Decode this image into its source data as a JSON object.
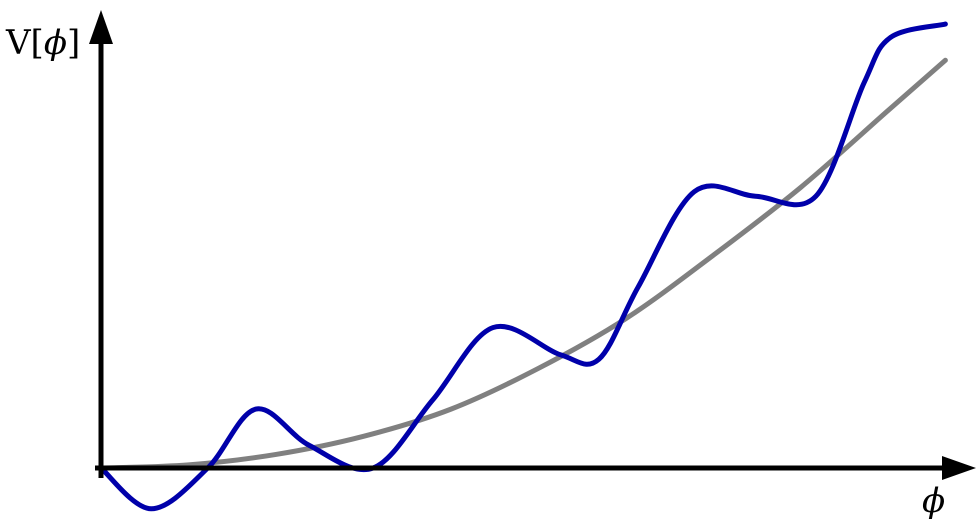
{
  "chart_data": {
    "type": "line",
    "xlabel": "ϕ",
    "ylabel": "V[ϕ]",
    "ylabel_parts": {
      "prefix": "V[",
      "symbol": "ϕ",
      "suffix": "]"
    },
    "xlim": [
      0,
      1
    ],
    "ylim": [
      -0.11,
      1.0
    ],
    "grid": false,
    "legend": "none",
    "x": [
      0.0,
      0.0575,
      0.122,
      0.177,
      0.238,
      0.311,
      0.379,
      0.448,
      0.525,
      0.569,
      0.614,
      0.678,
      0.748,
      0.817,
      0.872,
      0.902,
      0.965
    ],
    "series": [
      {
        "color": "#808080",
        "x": [
          0.0,
          0.1,
          0.2,
          0.3,
          0.4,
          0.5,
          0.6,
          0.7,
          0.8,
          0.9,
          0.965
        ],
        "values": [
          0.0,
          0.007,
          0.03,
          0.07,
          0.13,
          0.22,
          0.33,
          0.47,
          0.62,
          0.79,
          0.9
        ]
      },
      {
        "color": "#0000aa",
        "x": [
          0.0,
          0.0575,
          0.122,
          0.177,
          0.238,
          0.311,
          0.379,
          0.448,
          0.525,
          0.569,
          0.614,
          0.678,
          0.748,
          0.817,
          0.872,
          0.902,
          0.965
        ],
        "values": [
          0.0,
          -0.09,
          0.0,
          0.13,
          0.05,
          0.0,
          0.15,
          0.31,
          0.25,
          0.24,
          0.4,
          0.61,
          0.6,
          0.6,
          0.85,
          0.95,
          0.98
        ]
      }
    ]
  }
}
